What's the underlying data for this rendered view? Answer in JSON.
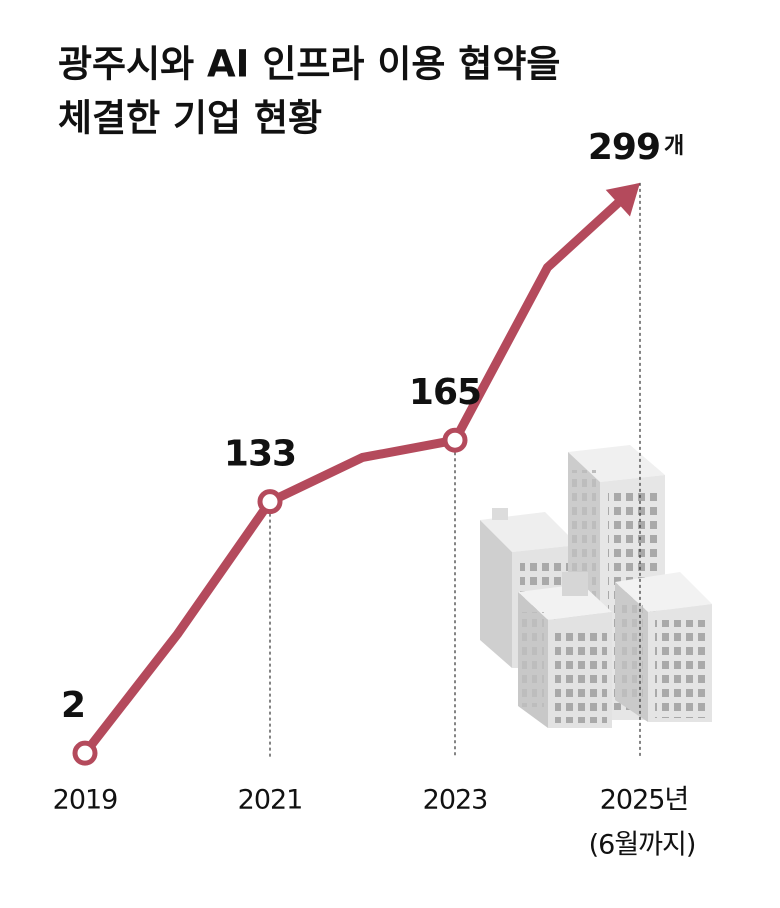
{
  "chart_data": {
    "type": "line",
    "title": [
      "광주시와 AI 인프라 이용 협약을",
      "체결한 기업  현황"
    ],
    "categories": [
      "2019",
      null,
      "2021",
      null,
      "2023",
      null,
      "2025년"
    ],
    "x_sublabel": "(6월까지)",
    "values": [
      2,
      64,
      133,
      156,
      165,
      255,
      299
    ],
    "value_labels": [
      "2",
      null,
      "133",
      null,
      "165",
      null,
      "299"
    ],
    "unit_label": "개",
    "color": "#b44a5c",
    "ylim": [
      0,
      300
    ]
  }
}
